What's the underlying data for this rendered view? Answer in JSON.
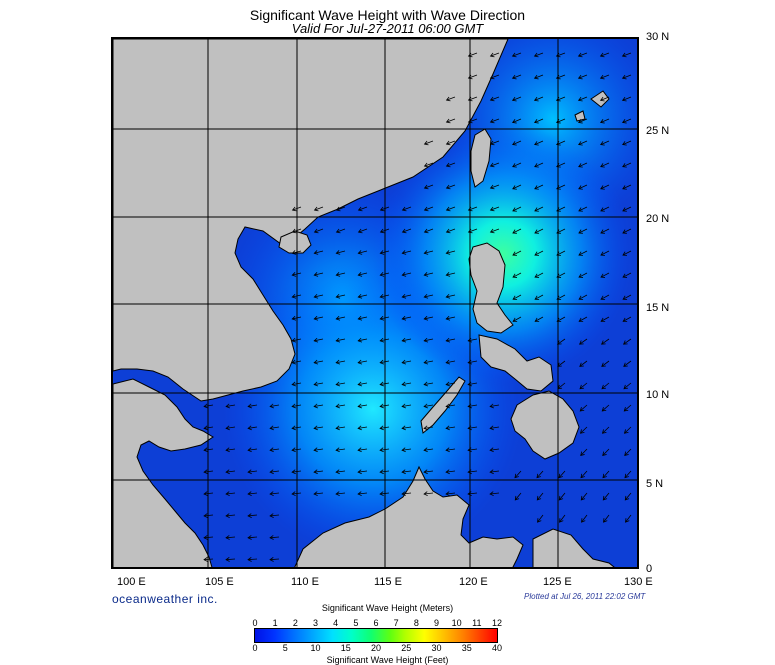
{
  "header": {
    "title": "Significant Wave Height with Wave Direction",
    "subtitle": "Valid For Jul-27-2011 06:00 GMT"
  },
  "axes": {
    "lat_labels": [
      "30 N",
      "25 N",
      "20 N",
      "15 N",
      "10 N",
      "5 N",
      "0"
    ],
    "lon_labels": [
      "100 E",
      "105 E",
      "110 E",
      "115 E",
      "120 E",
      "125 E",
      "130 E"
    ]
  },
  "footer": {
    "brand": "oceanweather inc.",
    "plotted": "Plotted at Jul 26, 2011 22:02 GMT"
  },
  "legend": {
    "meters_title": "Significant Wave Height (Meters)",
    "feet_title": "Significant Wave Height (Feet)",
    "meters_ticks": [
      "0",
      "1",
      "2",
      "3",
      "4",
      "5",
      "6",
      "7",
      "8",
      "9",
      "10",
      "11",
      "12"
    ],
    "feet_ticks": [
      "0",
      "5",
      "10",
      "15",
      "20",
      "25",
      "30",
      "35",
      "40"
    ]
  },
  "colors": {
    "land": "#c0c0c0",
    "low_wave": "#0d3fd6",
    "mid_wave": "#00c8ff",
    "high_wave": "#30ff90",
    "arrow": "#000000"
  }
}
